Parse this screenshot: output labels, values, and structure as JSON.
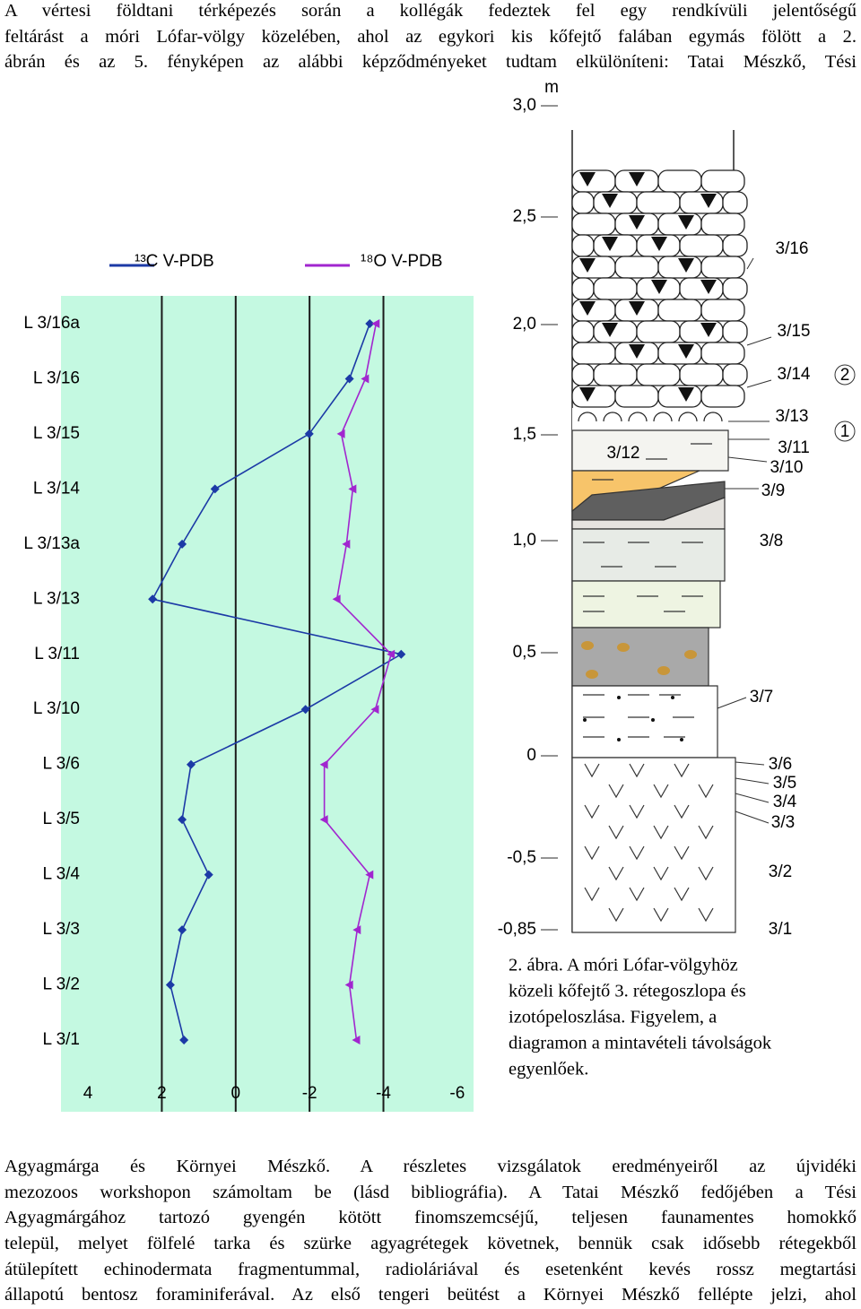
{
  "top_paragraph": {
    "lines": [
      "A vértesi földtani térképezés során a kollégák fedeztek fel egy rendkívüli jelentőségű",
      "feltárást a móri Lófar-völgy közelében, ahol az egykori kis kőfejtő falában egymás fölött a 2.",
      "ábrán és az 5. fényképen az alábbi képződményeket tudtam elkülöníteni: Tatai Mészkő, Tési"
    ]
  },
  "chart_data": {
    "type": "line",
    "orientation": "horizontal",
    "categories": [
      "L 3/16a",
      "L 3/16",
      "L 3/15",
      "L 3/14",
      "L 3/13a",
      "L 3/13",
      "L 3/11",
      "L 3/10",
      "L 3/6",
      "L 3/5",
      "L 3/4",
      "L 3/3",
      "L 3/2",
      "L 3/1"
    ],
    "series": [
      {
        "name": "¹³C V-PDB",
        "color": "#1c3aa6",
        "values": [
          -3.63,
          -3.08,
          -1.99,
          0.56,
          1.45,
          2.25,
          -4.48,
          -1.89,
          1.21,
          1.45,
          0.73,
          1.45,
          1.77,
          1.4
        ]
      },
      {
        "name": "¹⁸O V-PDB",
        "color": "#a126cf",
        "values": [
          -3.8,
          -3.51,
          -2.86,
          -3.17,
          -3.0,
          -2.74,
          -4.21,
          -3.78,
          -2.4,
          -2.4,
          -3.63,
          -3.29,
          -3.08,
          -3.27
        ]
      }
    ],
    "xlim": [
      4.73,
      -6.44
    ],
    "xticks": [
      4,
      2,
      0,
      -2,
      -4,
      -6
    ],
    "grid": true,
    "background": "#c4f9e1"
  },
  "column": {
    "unit": "m",
    "depth_labels": [
      "3,0",
      "2,5",
      "2,0",
      "1,5",
      "1,0",
      "0,5",
      "0",
      "-0,5",
      "-0,85"
    ],
    "layers": [
      "3/16",
      "3/15",
      "3/14",
      "3/13",
      "3/11",
      "3/10",
      "3/9",
      "3/8",
      "3/7",
      "3/6",
      "3/5",
      "3/4",
      "3/3",
      "3/2",
      "3/1",
      "3/12"
    ],
    "markers": [
      "2",
      "1"
    ]
  },
  "caption": {
    "lines": [
      "2. ábra. A móri Lófar-völgyhöz",
      "közeli kőfejtő 3. rétegoszlopa és",
      "izotópeloszlása. Figyelem, a",
      "diagramon a mintavételi távolságok",
      "egyenlőek."
    ]
  },
  "bottom_paragraph": {
    "lines": [
      "Agyagmárga és Környei Mészkő. A részletes vizsgálatok eredményeiről az újvidéki",
      "mezozoos workshopon számoltam be (lásd bibliográfia). A Tatai Mészkő fedőjében a Tési",
      "Agyagmárgához tartozó gyengén kötött finomszemcséjű, teljesen faunamentes homokkő",
      "települ, melyet fölfelé tarka és szürke agyagrétegek követnek, bennük csak idősebb rétegekből",
      "átülepített echinodermata fragmentummal, radioláriával és esetenként kevés rossz megtartási",
      "állapotú bentosz foraminiferával. Az első tengeri beütést a Környei Mészkő fellépte jelzi, ahol"
    ]
  }
}
